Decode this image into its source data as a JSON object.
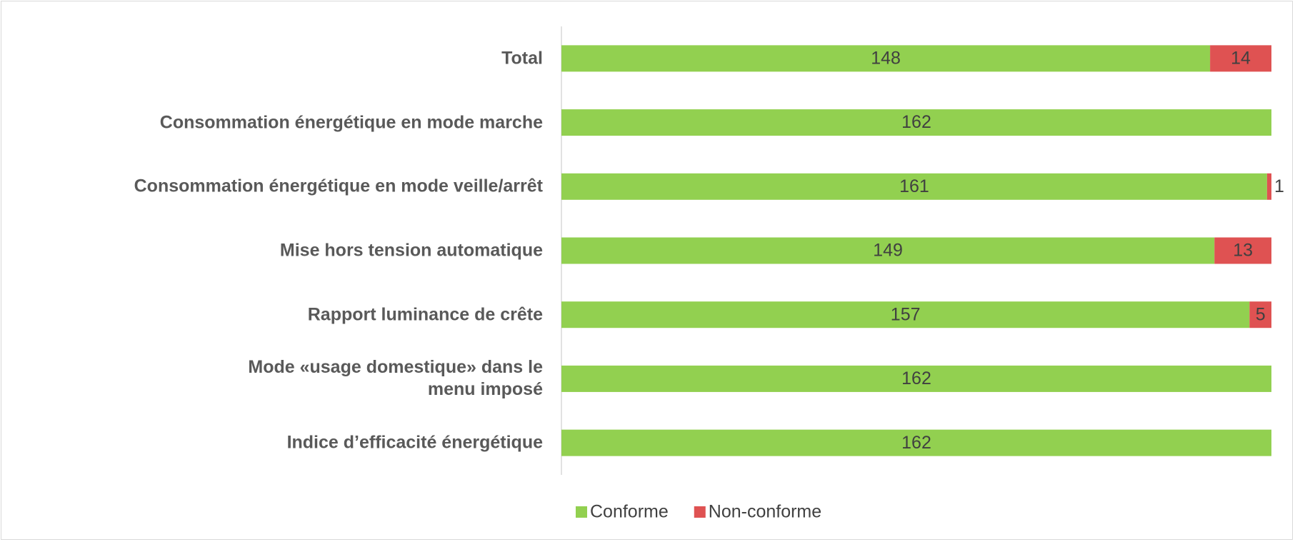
{
  "chart_data": {
    "type": "stacked-barh",
    "categories": [
      "Total",
      "Consommation énergétique en mode marche",
      "Consommation énergétique en mode veille/arrêt",
      "Mise hors tension automatique",
      "Rapport luminance de crête",
      "Mode «usage domestique» dans le\nmenu imposé",
      "Indice d’efficacité énergétique"
    ],
    "series": [
      {
        "name": "Conforme",
        "color": "#92d050",
        "values": [
          148,
          162,
          161,
          149,
          157,
          162,
          162
        ]
      },
      {
        "name": "Non-conforme",
        "color": "#df5252",
        "values": [
          14,
          0,
          1,
          13,
          5,
          0,
          0
        ]
      }
    ],
    "xlim": [
      0,
      162
    ],
    "legend": "bottom"
  }
}
